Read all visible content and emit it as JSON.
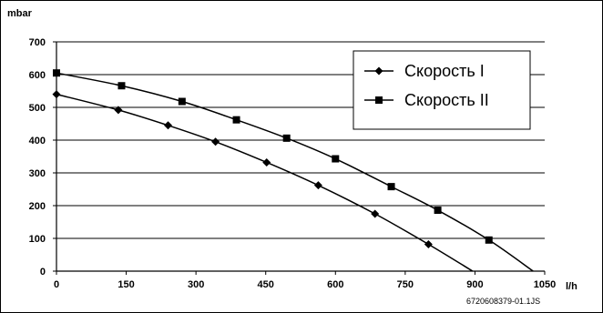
{
  "chart_data": {
    "type": "line",
    "ylabel": "mbar",
    "xlabel": "l/h",
    "xlim": [
      0,
      1050
    ],
    "ylim": [
      0,
      700
    ],
    "x_ticks": [
      0,
      150,
      300,
      450,
      600,
      750,
      900,
      1050
    ],
    "y_ticks": [
      0,
      100,
      200,
      300,
      400,
      500,
      600,
      700
    ],
    "grid": "horizontal",
    "legend_position": "top-right",
    "series": [
      {
        "name": "Скорость I",
        "marker": "diamond",
        "x": [
          0,
          133,
          240,
          342,
          452,
          563,
          685,
          800
        ],
        "y": [
          540,
          492,
          445,
          395,
          332,
          262,
          175,
          82
        ],
        "curve_end": [
          895,
          0
        ]
      },
      {
        "name": "Скорость II",
        "marker": "square",
        "x": [
          0,
          140,
          270,
          387,
          495,
          600,
          720,
          820,
          930
        ],
        "y": [
          605,
          566,
          518,
          462,
          406,
          343,
          258,
          186,
          95
        ],
        "curve_end": [
          1025,
          0
        ]
      }
    ],
    "footnote": "6720608379-01.1JS"
  },
  "colors": {
    "line": "#000000",
    "grid": "#000000"
  }
}
